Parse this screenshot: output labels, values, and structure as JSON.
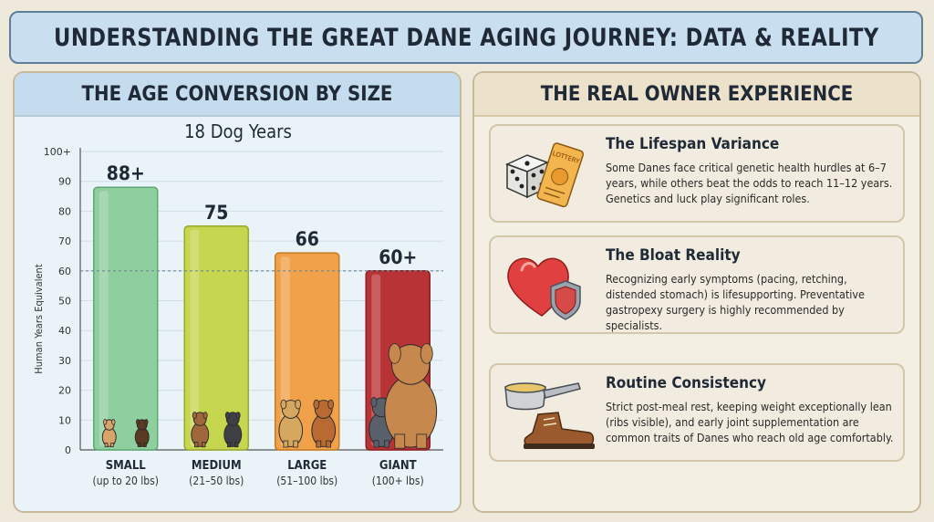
{
  "title": "UNDERSTANDING THE GREAT DANE AGING JOURNEY: DATA & REALITY",
  "left_panel": {
    "heading": "THE AGE CONVERSION BY SIZE"
  },
  "right_panel": {
    "heading": "THE REAL OWNER EXPERIENCE",
    "cards": [
      {
        "title": "The Lifespan Variance",
        "text": "Some Danes face critical genetic health hurdles at 6–7 years, while others beat the odds to reach 11–12 years.  Genetics and luck play significant roles.",
        "icon": "dice-and-lottery-ticket-icon",
        "ticket_label": "LOTTERY"
      },
      {
        "title": "The Bloat Reality",
        "text": "Recognizing early symptoms (pacing, retching, distended stomach) is lifesupporting. Preventative gastropexy surgery is highly recommended by specialists.",
        "icon": "heart-shield-icon"
      },
      {
        "title": "Routine Consistency",
        "text": "Strict post-meal rest, keeping weight exceptionally lean (ribs visible), and early joint supplementation are common traits of Danes who reach old age comfortably.",
        "icon": "scoop-and-boot-icon"
      }
    ]
  },
  "chart_data": {
    "type": "bar",
    "title": "18 Dog Years",
    "ylabel": "Human Years Equivalent",
    "ylim": [
      0,
      100
    ],
    "yticks": [
      "0",
      "10",
      "20",
      "30",
      "40",
      "50",
      "60",
      "70",
      "80",
      "90",
      "100+"
    ],
    "reference_line": 60,
    "categories": [
      "SMALL",
      "MEDIUM",
      "LARGE",
      "GIANT"
    ],
    "subcategories": [
      "(up to 20 lbs)",
      "(21–50 lbs)",
      "(51–100 lbs)",
      "(100+ lbs)"
    ],
    "values": [
      88,
      75,
      66,
      60
    ],
    "value_labels": [
      "88+",
      "75",
      "66",
      "60+"
    ],
    "colors": [
      "#8fce9e",
      "#c6d64f",
      "#f0a14a",
      "#b83335"
    ],
    "dog_icons": [
      "small-dogs-icon",
      "medium-dogs-icon",
      "large-dogs-icon",
      "giant-dogs-icon"
    ]
  }
}
